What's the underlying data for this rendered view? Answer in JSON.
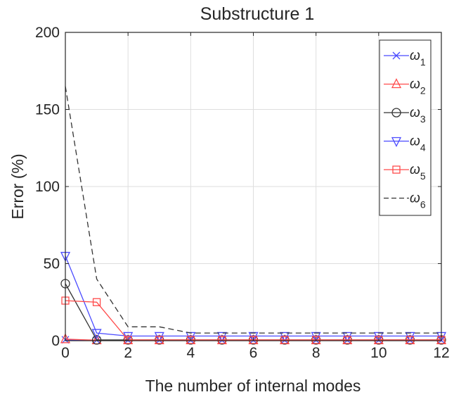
{
  "chart_data": {
    "type": "line",
    "title": "Substructure 1",
    "xlabel": "The number of internal modes",
    "ylabel": "Error (%)",
    "xlim": [
      0,
      12
    ],
    "ylim": [
      0,
      200
    ],
    "xticks": [
      0,
      2,
      4,
      6,
      8,
      10,
      12
    ],
    "yticks": [
      0,
      50,
      100,
      150,
      200
    ],
    "grid": true,
    "legend_position": "top-right",
    "x": [
      0,
      1,
      2,
      3,
      4,
      5,
      6,
      7,
      8,
      9,
      10,
      11,
      12
    ],
    "series": [
      {
        "name": "ω",
        "sub": "1",
        "color": "#4b4bff",
        "marker": "x",
        "dash": false,
        "values": [
          0.6,
          0.3,
          0.3,
          0.3,
          0.3,
          0.3,
          0.3,
          0.3,
          0.3,
          0.3,
          0.3,
          0.3,
          0.3
        ]
      },
      {
        "name": "ω",
        "sub": "2",
        "color": "#ff4b4b",
        "marker": "triangle-up",
        "dash": false,
        "values": [
          1.0,
          0.3,
          0.3,
          0.3,
          0.3,
          0.3,
          0.3,
          0.3,
          0.3,
          0.3,
          0.3,
          0.3,
          0.3
        ]
      },
      {
        "name": "ω",
        "sub": "3",
        "color": "#333333",
        "marker": "circle",
        "dash": false,
        "values": [
          37,
          0.5,
          0.5,
          0.5,
          0.5,
          0.5,
          0.5,
          0.5,
          0.5,
          0.5,
          0.5,
          0.5,
          0.5
        ]
      },
      {
        "name": "ω",
        "sub": "4",
        "color": "#4b4bff",
        "marker": "triangle-down",
        "dash": false,
        "values": [
          55,
          5,
          3,
          3,
          3,
          3,
          3,
          3,
          3,
          3,
          3,
          3,
          3
        ]
      },
      {
        "name": "ω",
        "sub": "5",
        "color": "#ff4b4b",
        "marker": "square",
        "dash": false,
        "values": [
          26,
          25,
          0.5,
          0.5,
          0.5,
          0.5,
          0.5,
          0.5,
          0.5,
          0.5,
          0.5,
          0.5,
          0.5
        ]
      },
      {
        "name": "ω",
        "sub": "6",
        "color": "#333333",
        "marker": "none",
        "dash": true,
        "values": [
          165,
          40,
          9,
          9,
          5,
          5,
          5,
          5,
          5,
          5,
          5,
          5,
          5
        ]
      }
    ]
  }
}
